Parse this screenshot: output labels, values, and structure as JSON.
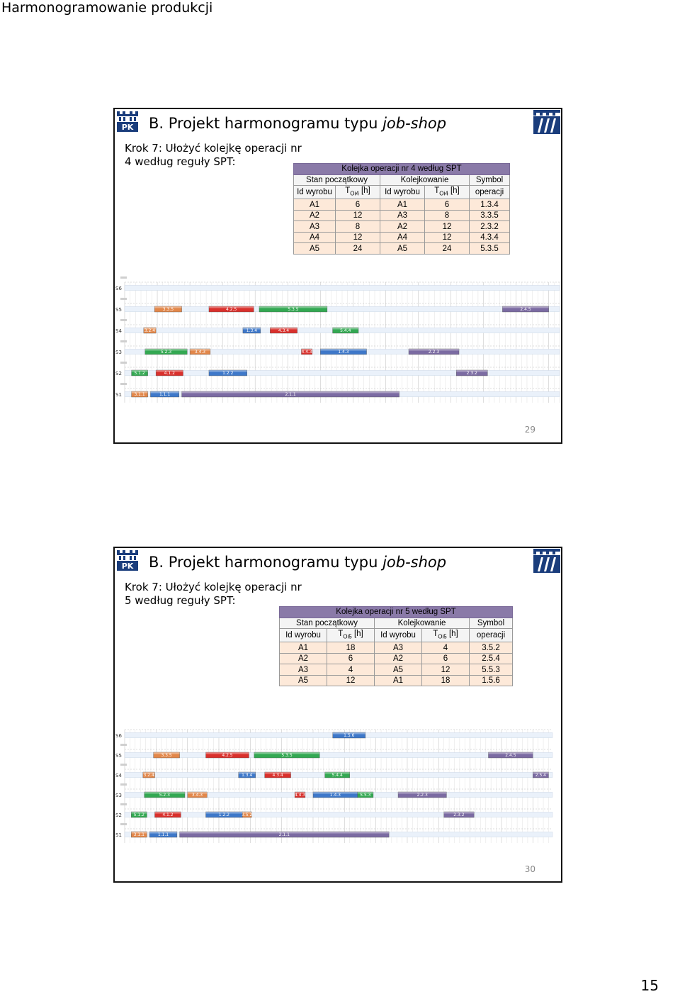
{
  "document": {
    "title": "Harmonogramowanie produkcji",
    "page_number": "15"
  },
  "slides": [
    {
      "title_prefix": "B. Projekt harmonogramu typu ",
      "title_emph": "job-shop",
      "step_line1": "Krok 7: Ułożyć kolejkę operacji nr",
      "step_line2": "4 według reguły SPT:",
      "table": {
        "caption": "Kolejka operacji nr 4 według SPT",
        "group_initial": "Stan początkowy",
        "group_queue": "Kolejkowanie",
        "group_symbol": "Symbol",
        "col_id": "Id wyrobu",
        "col_t": "T",
        "col_t_sub": "Oi4",
        "col_t_unit": " [h]",
        "col_symbol": "operacji",
        "rows": [
          [
            "A1",
            "6",
            "A1",
            "6",
            "1.3.4"
          ],
          [
            "A2",
            "12",
            "A3",
            "8",
            "3.3.5"
          ],
          [
            "A3",
            "8",
            "A2",
            "12",
            "2.3.2"
          ],
          [
            "A4",
            "12",
            "A4",
            "12",
            "4.3.4"
          ],
          [
            "A5",
            "24",
            "A5",
            "24",
            "5.3.5"
          ]
        ]
      },
      "gantt": {
        "rows": [
          {
            "label": "S6",
            "bars": []
          },
          {
            "label": "S5",
            "bars": [
              {
                "op": "3.3.5",
                "start": 22,
                "end": 42,
                "color": "#e2874a"
              },
              {
                "op": "4.2.5",
                "start": 62,
                "end": 95,
                "color": "#d9302c"
              },
              {
                "op": "5.3.5",
                "start": 99,
                "end": 149,
                "color": "#33a852"
              },
              {
                "op": "2.4.5",
                "start": 278,
                "end": 312,
                "color": "#7b6ba2"
              }
            ]
          },
          {
            "label": "S4",
            "bars": [
              {
                "op": "3.2.4",
                "start": 14,
                "end": 23,
                "color": "#e2874a"
              },
              {
                "op": "1.3.4",
                "start": 87,
                "end": 100,
                "color": "#3e78c9"
              },
              {
                "op": "4.3.4",
                "start": 107,
                "end": 127,
                "color": "#d9302c"
              },
              {
                "op": "5.4.4",
                "start": 153,
                "end": 172,
                "color": "#33a852"
              }
            ]
          },
          {
            "label": "S3",
            "bars": [
              {
                "op": "5.2.3",
                "start": 15,
                "end": 46,
                "color": "#33a852"
              },
              {
                "op": "3.4.3",
                "start": 48,
                "end": 63,
                "color": "#e2874a"
              },
              {
                "op": "4.4.3",
                "start": 130,
                "end": 138,
                "color": "#d9302c"
              },
              {
                "op": "1.4.3",
                "start": 144,
                "end": 178,
                "color": "#3e78c9"
              },
              {
                "op": "2.2.3",
                "start": 209,
                "end": 246,
                "color": "#7b6ba2"
              }
            ]
          },
          {
            "label": "S2",
            "bars": [
              {
                "op": "5.1.2",
                "start": 5,
                "end": 17,
                "color": "#33a852"
              },
              {
                "op": "4.1.2",
                "start": 23,
                "end": 43,
                "color": "#d9302c"
              },
              {
                "op": "1.2.2",
                "start": 62,
                "end": 90,
                "color": "#3e78c9"
              },
              {
                "op": "2.3.2",
                "start": 244,
                "end": 267,
                "color": "#7b6ba2"
              }
            ]
          },
          {
            "label": "S1",
            "bars": [
              {
                "op": "3.1.1",
                "start": 5,
                "end": 17,
                "color": "#e2874a"
              },
              {
                "op": "1.1.1",
                "start": 19,
                "end": 40,
                "color": "#3e78c9"
              },
              {
                "op": "2.1.1",
                "start": 42,
                "end": 202,
                "color": "#7b6ba2"
              }
            ]
          }
        ]
      },
      "number": "29"
    },
    {
      "title_prefix": "B. Projekt harmonogramu typu ",
      "title_emph": "job-shop",
      "step_line1": "Krok 7: Ułożyć kolejkę operacji nr",
      "step_line2": "5 według reguły SPT:",
      "table": {
        "caption": "Kolejka operacji nr 5 według SPT",
        "group_initial": "Stan początkowy",
        "group_queue": "Kolejkowanie",
        "group_symbol": "Symbol",
        "col_id": "Id wyrobu",
        "col_t": "T",
        "col_t_sub": "Oi5",
        "col_t_unit": " [h]",
        "col_symbol": "operacji",
        "rows": [
          [
            "A1",
            "18",
            "A3",
            "4",
            "3.5.2"
          ],
          [
            "A2",
            "6",
            "A2",
            "6",
            "2.5.4"
          ],
          [
            "A3",
            "4",
            "A5",
            "12",
            "5.5.3"
          ],
          [
            "A5",
            "12",
            "A1",
            "18",
            "1.5.6"
          ]
        ]
      },
      "gantt": {
        "rows": [
          {
            "label": "S6",
            "bars": [
              {
                "op": "1.5.6",
                "start": 159,
                "end": 184,
                "color": "#3e78c9"
              }
            ]
          },
          {
            "label": "S5",
            "bars": [
              {
                "op": "3.3.5",
                "start": 22,
                "end": 42,
                "color": "#e2874a"
              },
              {
                "op": "4.2.5",
                "start": 62,
                "end": 95,
                "color": "#d9302c"
              },
              {
                "op": "5.3.5",
                "start": 99,
                "end": 149,
                "color": "#33a852"
              },
              {
                "op": "2.4.5",
                "start": 278,
                "end": 312,
                "color": "#7b6ba2"
              }
            ]
          },
          {
            "label": "S4",
            "bars": [
              {
                "op": "3.2.4",
                "start": 14,
                "end": 23,
                "color": "#e2874a"
              },
              {
                "op": "1.3.4",
                "start": 87,
                "end": 100,
                "color": "#3e78c9"
              },
              {
                "op": "4.3.4",
                "start": 107,
                "end": 127,
                "color": "#d9302c"
              },
              {
                "op": "5.4.4",
                "start": 153,
                "end": 172,
                "color": "#33a852"
              },
              {
                "op": "2.5.4",
                "start": 312,
                "end": 324,
                "color": "#7b6ba2"
              }
            ]
          },
          {
            "label": "S3",
            "bars": [
              {
                "op": "5.2.3",
                "start": 15,
                "end": 46,
                "color": "#33a852"
              },
              {
                "op": "3.4.3",
                "start": 48,
                "end": 63,
                "color": "#e2874a"
              },
              {
                "op": "4.4.3",
                "start": 130,
                "end": 138,
                "color": "#d9302c"
              },
              {
                "op": "1.4.3",
                "start": 144,
                "end": 178,
                "color": "#3e78c9"
              },
              {
                "op": "5.5.3",
                "start": 178,
                "end": 190,
                "color": "#33a852"
              },
              {
                "op": "2.2.3",
                "start": 209,
                "end": 246,
                "color": "#7b6ba2"
              }
            ]
          },
          {
            "label": "S2",
            "bars": [
              {
                "op": "5.1.2",
                "start": 5,
                "end": 17,
                "color": "#33a852"
              },
              {
                "op": "4.1.2",
                "start": 23,
                "end": 43,
                "color": "#d9302c"
              },
              {
                "op": "1.2.2",
                "start": 62,
                "end": 90,
                "color": "#3e78c9"
              },
              {
                "op": "3.5.2",
                "start": 90,
                "end": 97,
                "color": "#e2874a"
              },
              {
                "op": "2.3.2",
                "start": 244,
                "end": 267,
                "color": "#7b6ba2"
              }
            ]
          },
          {
            "label": "S1",
            "bars": [
              {
                "op": "3.1.1",
                "start": 5,
                "end": 17,
                "color": "#e2874a"
              },
              {
                "op": "1.1.1",
                "start": 19,
                "end": 40,
                "color": "#3e78c9"
              },
              {
                "op": "2.1.1",
                "start": 42,
                "end": 202,
                "color": "#7b6ba2"
              }
            ]
          }
        ]
      },
      "number": "30"
    }
  ]
}
